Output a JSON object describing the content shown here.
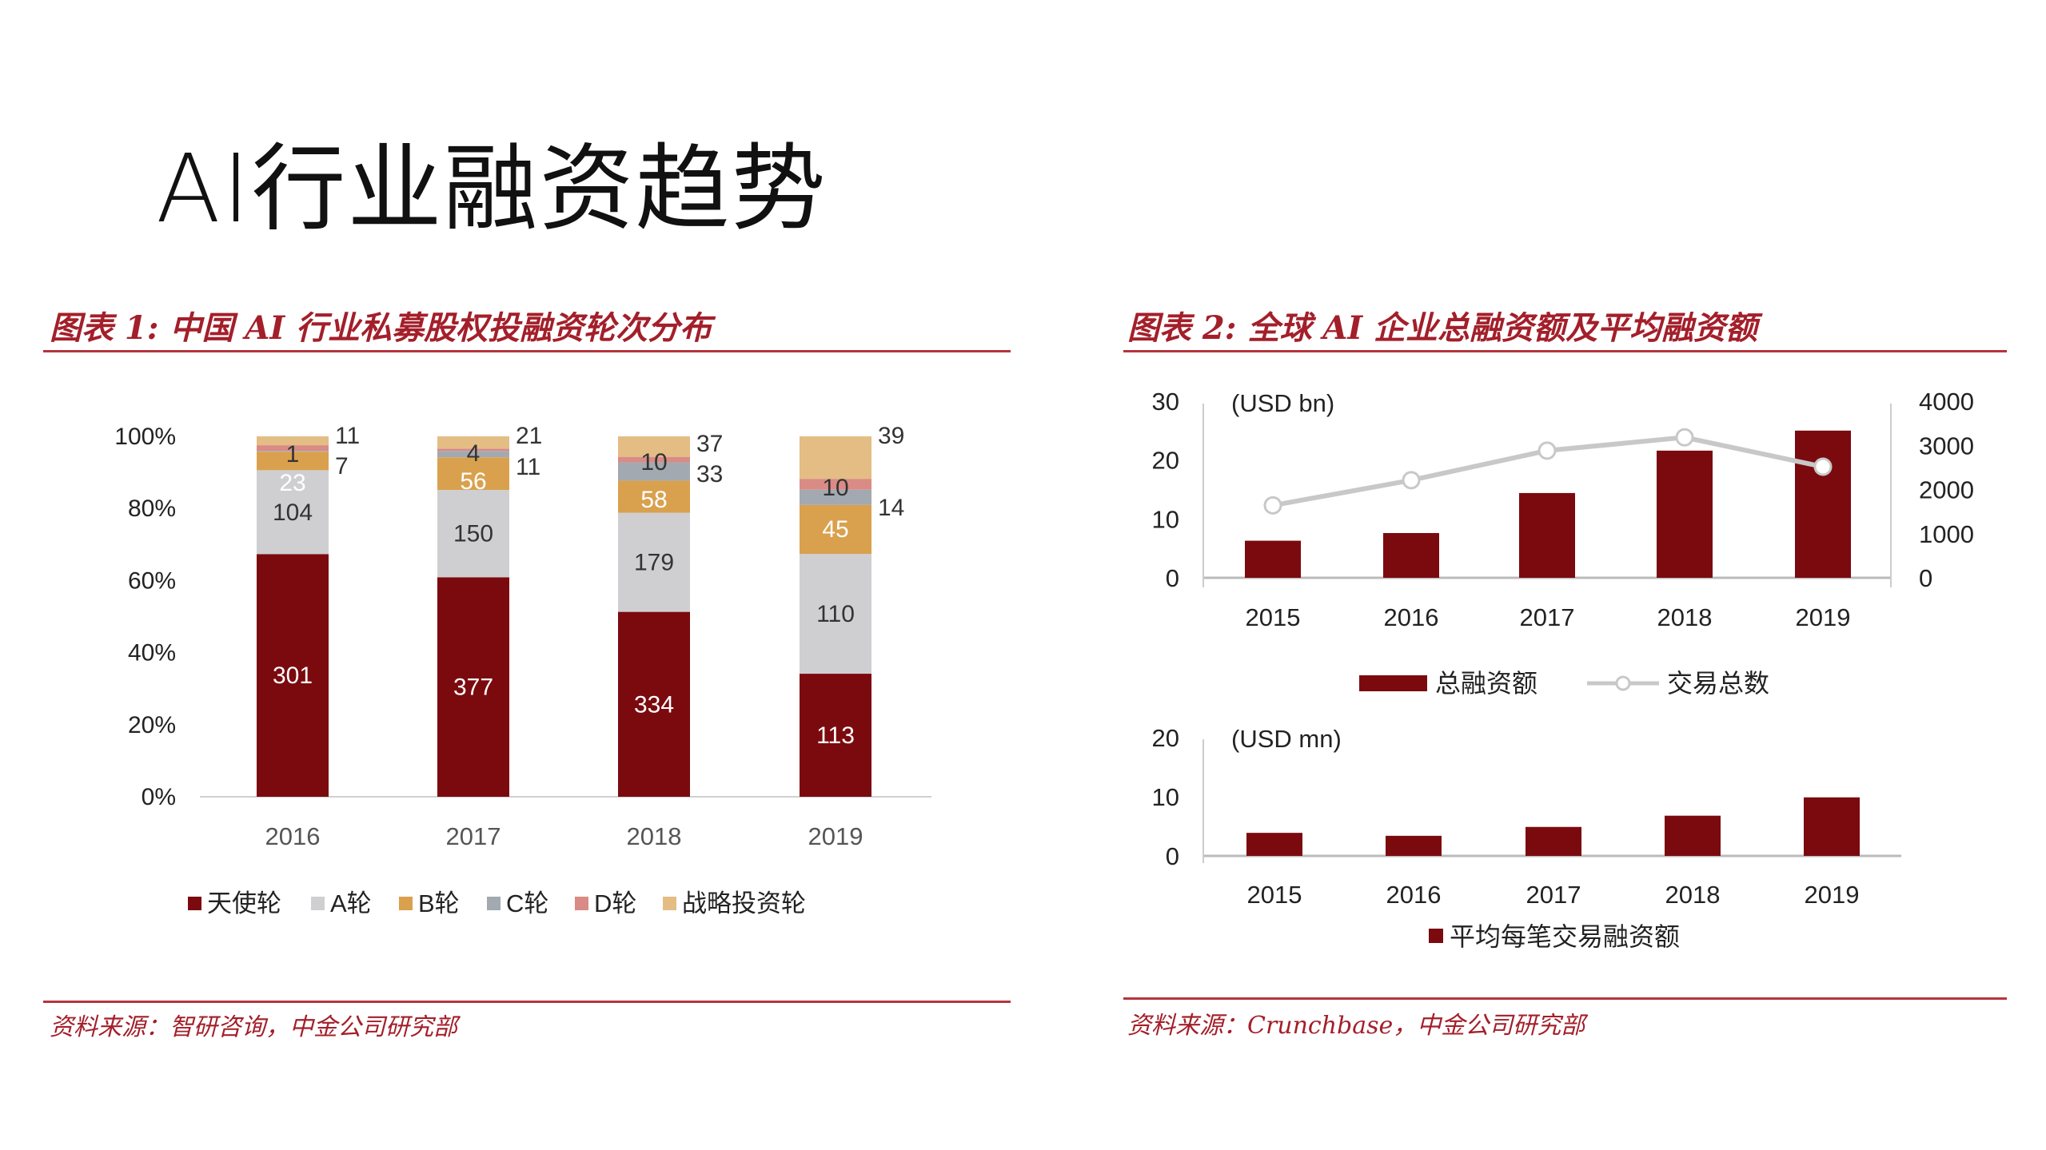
{
  "page_title": "AI行业融资趋势",
  "colors": {
    "dark_red": "#7b0a0e",
    "light_gray": "#cfcfd1",
    "gold": "#d9a14e",
    "gray": "#a3a9b0",
    "pink": "#d98b86",
    "tan": "#e4bd84",
    "line": "#c8c8c8",
    "accent": "#a31f2a"
  },
  "chart_data": [
    {
      "type": "bar",
      "stacked": "percent",
      "title": "图表 1:  中国 AI 行业私募股权投融资轮次分布",
      "source": "资料来源：智研咨询，中金公司研究部",
      "categories": [
        "2016",
        "2017",
        "2018",
        "2019"
      ],
      "yticks": [
        "0%",
        "20%",
        "40%",
        "60%",
        "80%",
        "100%"
      ],
      "ylim": [
        0,
        100
      ],
      "legend_position": "bottom",
      "series": [
        {
          "name": "天使轮",
          "color": "#7b0a0e",
          "values": [
            301,
            377,
            334,
            113
          ]
        },
        {
          "name": "A轮",
          "color": "#cfcfd1",
          "values": [
            104,
            150,
            179,
            110
          ]
        },
        {
          "name": "B轮",
          "color": "#d9a14e",
          "values": [
            23,
            56,
            58,
            45
          ]
        },
        {
          "name": "C轮",
          "color": "#a3a9b0",
          "values": [
            1,
            11,
            33,
            14
          ]
        },
        {
          "name": "D轮",
          "color": "#d98b86",
          "values": [
            7,
            4,
            10,
            10
          ]
        },
        {
          "name": "战略投资轮",
          "color": "#e4bd84",
          "values": [
            11,
            21,
            37,
            39
          ]
        }
      ]
    },
    {
      "type": "bar+line",
      "title": "图表 2:  全球 AI 企业总融资额及平均融资额",
      "source": "资料来源：Crunchbase，中金公司研究部",
      "unit_label": "(USD bn)",
      "categories": [
        "2015",
        "2016",
        "2017",
        "2018",
        "2019"
      ],
      "ylim": [
        0,
        30
      ],
      "yticks": [
        "0",
        "10",
        "20",
        "30"
      ],
      "y2lim": [
        0,
        4000
      ],
      "y2ticks": [
        "0",
        "1000",
        "2000",
        "3000",
        "4000"
      ],
      "legend_position": "bottom",
      "series": [
        {
          "name": "总融资额",
          "type": "bar",
          "axis": "left",
          "color": "#7b0a0e",
          "values": [
            6.3,
            7.6,
            14.4,
            21.6,
            25.0
          ]
        },
        {
          "name": "交易总数",
          "type": "line",
          "axis": "right",
          "color": "#c8c8c8",
          "values": [
            1640,
            2210,
            2880,
            3180,
            2515
          ]
        }
      ]
    },
    {
      "type": "bar",
      "unit_label": "(USD mn)",
      "categories": [
        "2015",
        "2016",
        "2017",
        "2018",
        "2019"
      ],
      "ylim": [
        0,
        20
      ],
      "yticks": [
        "0",
        "10",
        "20"
      ],
      "legend_position": "bottom",
      "series": [
        {
          "name": "平均每笔交易融资额",
          "color": "#7b0a0e",
          "values": [
            3.9,
            3.4,
            4.9,
            6.8,
            9.9
          ]
        }
      ]
    }
  ]
}
